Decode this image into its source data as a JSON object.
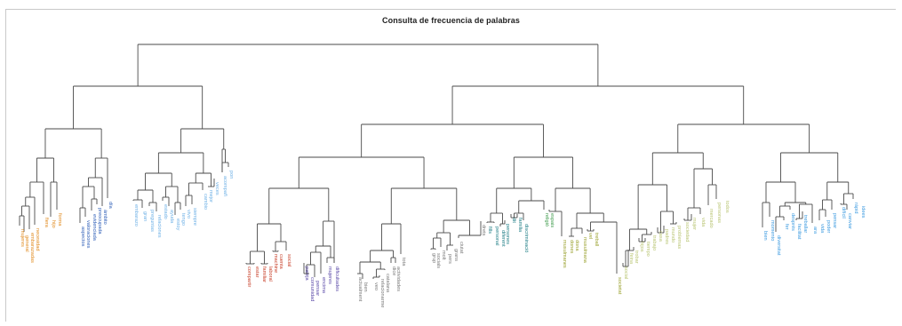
{
  "title": "Consulta de frecuencia de palabras",
  "colors": {
    "orange": "#e0891c",
    "red": "#c8402a",
    "blue": "#2f5fb8",
    "lightblue": "#6fb1e6",
    "purple": "#5b4aa8",
    "gray": "#7a7a7a",
    "teal": "#1f7e86",
    "green": "#3c9a4a",
    "olive": "#9aa12e",
    "lightolive": "#b9c573",
    "skyblue": "#3d9be0"
  },
  "labels": [
    {
      "t": "mujeres",
      "c": "orange"
    },
    {
      "t": "general",
      "c": "orange"
    },
    {
      "t": "embarazadas",
      "c": "orange"
    },
    {
      "t": "necesidad",
      "c": "orange"
    },
    {
      "t": "fiera",
      "c": "orange"
    },
    {
      "t": "hijo",
      "c": "orange"
    },
    {
      "t": "forma",
      "c": "orange"
    },
    {
      "t": "aspectos",
      "c": "blue"
    },
    {
      "t": "valoraciones",
      "c": "blue"
    },
    {
      "t": "evidenciada",
      "c": "blue"
    },
    {
      "t": "preocupada",
      "c": "blue"
    },
    {
      "t": "ámbito",
      "c": "blue"
    },
    {
      "t": "día",
      "c": "blue"
    },
    {
      "t": "embarazo",
      "c": "lightblue"
    },
    {
      "t": "gran",
      "c": "lightblue"
    },
    {
      "t": "preguntas",
      "c": "lightblue"
    },
    {
      "t": "relaciones",
      "c": "lightblue"
    },
    {
      "t": "estado",
      "c": "lightblue"
    },
    {
      "t": "ayuda",
      "c": "lightblue"
    },
    {
      "t": "estoy",
      "c": "lightblue"
    },
    {
      "t": "tengo",
      "c": "lightblue"
    },
    {
      "t": "vivo",
      "c": "lightblue"
    },
    {
      "t": "siempre",
      "c": "lightblue"
    },
    {
      "t": "cambio",
      "c": "lightblue"
    },
    {
      "t": "mejor",
      "c": "lightblue"
    },
    {
      "t": "veces",
      "c": "lightblue"
    },
    {
      "t": "acompañ",
      "c": "lightblue"
    },
    {
      "t": "pon",
      "c": "lightblue"
    },
    {
      "t": "compartir",
      "c": "red"
    },
    {
      "t": "estar",
      "c": "red"
    },
    {
      "t": "familiar",
      "c": "red"
    },
    {
      "t": "laboral",
      "c": "red"
    },
    {
      "t": "machine",
      "c": "red"
    },
    {
      "t": "cuenta",
      "c": "red"
    },
    {
      "t": "social",
      "c": "red"
    },
    {
      "t": "pareja",
      "c": "purple"
    },
    {
      "t": "comunidad",
      "c": "purple"
    },
    {
      "t": "pensar",
      "c": "purple"
    },
    {
      "t": "encima",
      "c": "purple"
    },
    {
      "t": "mujeres",
      "c": "purple"
    },
    {
      "t": "dificultades",
      "c": "purple"
    },
    {
      "t": "actualment",
      "c": "gray"
    },
    {
      "t": "bien",
      "c": "gray"
    },
    {
      "t": "veo",
      "c": "gray"
    },
    {
      "t": "relacionarme",
      "c": "gray"
    },
    {
      "t": "catalana",
      "c": "gray"
    },
    {
      "t": "dice",
      "c": "gray"
    },
    {
      "t": "actividades",
      "c": "gray"
    },
    {
      "t": "tota",
      "c": "gray"
    },
    {
      "t": "grup",
      "c": "gray"
    },
    {
      "t": "socials",
      "c": "gray"
    },
    {
      "t": "molt",
      "c": "gray"
    },
    {
      "t": "pers",
      "c": "gray"
    },
    {
      "t": "grans",
      "c": "gray"
    },
    {
      "t": "ciutat",
      "c": "gray"
    },
    {
      "t": "drets",
      "c": "gray"
    },
    {
      "t": "fills",
      "c": "teal"
    },
    {
      "t": "personal",
      "c": "teal"
    },
    {
      "t": "diferent",
      "c": "teal"
    },
    {
      "t": "persones",
      "c": "teal"
    },
    {
      "t": "dit",
      "c": "teal"
    },
    {
      "t": "familia",
      "c": "teal"
    },
    {
      "t": "discriminació",
      "c": "teal"
    },
    {
      "t": "religió",
      "c": "green"
    },
    {
      "t": "espais",
      "c": "green"
    },
    {
      "t": "musulmanes",
      "c": "olive"
    },
    {
      "t": "dones",
      "c": "olive"
    },
    {
      "t": "dona",
      "c": "olive"
    },
    {
      "t": "musulmana",
      "c": "olive"
    },
    {
      "t": "vel",
      "c": "olive"
    },
    {
      "t": "treball",
      "c": "olive"
    },
    {
      "t": "societat",
      "c": "olive"
    },
    {
      "t": "social",
      "c": "lightolive"
    },
    {
      "t": "feina",
      "c": "lightolive"
    },
    {
      "t": "trobar",
      "c": "lightolive"
    },
    {
      "t": "hijos",
      "c": "lightolive"
    },
    {
      "t": "tiempo",
      "c": "lightolive"
    },
    {
      "t": "trabajo",
      "c": "lightolive"
    },
    {
      "t": "casa",
      "c": "lightolive"
    },
    {
      "t": "padres",
      "c": "lightolive"
    },
    {
      "t": "mundo",
      "c": "lightolive"
    },
    {
      "t": "problemas",
      "c": "lightolive"
    },
    {
      "t": "sociedad",
      "c": "lightolive"
    },
    {
      "t": "mujer",
      "c": "lightolive"
    },
    {
      "t": "vida",
      "c": "lightolive"
    },
    {
      "t": "mercado",
      "c": "lightolive"
    },
    {
      "t": "personas",
      "c": "lightolive"
    },
    {
      "t": "todos",
      "c": "lightolive"
    },
    {
      "t": "bien",
      "c": "skyblue"
    },
    {
      "t": "momento",
      "c": "skyblue"
    },
    {
      "t": "diversitat",
      "c": "skyblue"
    },
    {
      "t": "fer",
      "c": "skyblue"
    },
    {
      "t": "després",
      "c": "skyblue"
    },
    {
      "t": "facilitat",
      "c": "skyblue"
    },
    {
      "t": "treballar",
      "c": "skyblue"
    },
    {
      "t": "ara",
      "c": "skyblue"
    },
    {
      "t": "vida",
      "c": "skyblue"
    },
    {
      "t": "poder",
      "c": "skyblue"
    },
    {
      "t": "pensar",
      "c": "skyblue"
    },
    {
      "t": "difícil",
      "c": "skyblue"
    },
    {
      "t": "canviar",
      "c": "skyblue"
    },
    {
      "t": "ràpid",
      "c": "skyblue"
    },
    {
      "t": "idees",
      "c": "skyblue"
    }
  ]
}
